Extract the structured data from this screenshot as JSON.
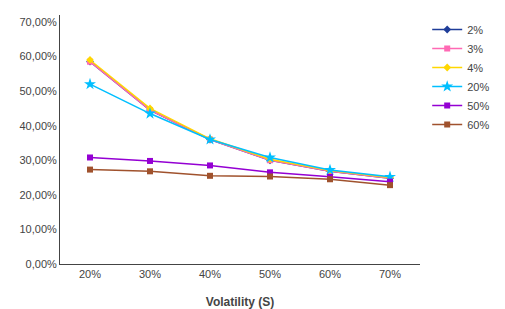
{
  "chart_data": {
    "type": "line",
    "xlabel": "Volatility (S)",
    "x": [
      0.2,
      0.3,
      0.4,
      0.5,
      0.6,
      0.7
    ],
    "xlim": [
      0.15,
      0.75
    ],
    "xticks": [
      {
        "value": 0.2,
        "label": "20%"
      },
      {
        "value": 0.3,
        "label": "30%"
      },
      {
        "value": 0.4,
        "label": "40%"
      },
      {
        "value": 0.5,
        "label": "50%"
      },
      {
        "value": 0.6,
        "label": "60%"
      },
      {
        "value": 0.7,
        "label": "70%"
      }
    ],
    "ylim": [
      0.0,
      0.72
    ],
    "yticks": [
      {
        "value": 0.0,
        "label": "0,00%"
      },
      {
        "value": 0.1,
        "label": "10,00%"
      },
      {
        "value": 0.2,
        "label": "20,00%"
      },
      {
        "value": 0.3,
        "label": "30,00%"
      },
      {
        "value": 0.4,
        "label": "40,00%"
      },
      {
        "value": 0.5,
        "label": "50,00%"
      },
      {
        "value": 0.6,
        "label": "60,00%"
      },
      {
        "value": 0.7,
        "label": "70,00%"
      }
    ],
    "grid": false,
    "legend": "upper right",
    "series": [
      {
        "name": "2%",
        "color": "#1F3D99",
        "marker": "diamond",
        "values": [
          0.585,
          0.445,
          0.36,
          0.3,
          0.268,
          0.248
        ]
      },
      {
        "name": "3%",
        "color": "#FF69B4",
        "marker": "square",
        "values": [
          0.585,
          0.445,
          0.36,
          0.3,
          0.268,
          0.248
        ]
      },
      {
        "name": "4%",
        "color": "#FFD700",
        "marker": "diamond",
        "values": [
          0.59,
          0.45,
          0.362,
          0.303,
          0.27,
          0.25
        ]
      },
      {
        "name": "20%",
        "color": "#00BFFF",
        "marker": "star",
        "values": [
          0.52,
          0.435,
          0.36,
          0.308,
          0.272,
          0.252
        ]
      },
      {
        "name": "50%",
        "color": "#9400D3",
        "marker": "square",
        "values": [
          0.308,
          0.298,
          0.285,
          0.265,
          0.252,
          0.238
        ]
      },
      {
        "name": "60%",
        "color": "#A0522D",
        "marker": "square",
        "values": [
          0.273,
          0.268,
          0.255,
          0.253,
          0.245,
          0.228
        ]
      }
    ]
  }
}
